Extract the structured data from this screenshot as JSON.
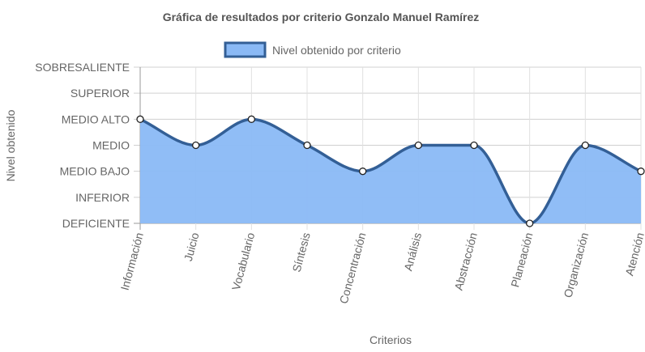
{
  "chart_data": {
    "type": "area",
    "title": "Gráfica de resultados por criterio Gonzalo Manuel Ramírez",
    "xlabel": "Criterios",
    "ylabel": "Nivel obtenido",
    "legend_position": "top",
    "categories": [
      "Información",
      "Juicio",
      "Vocabulario",
      "Síntesis",
      "Concentración",
      "Análisis",
      "Abstracción",
      "Planeación",
      "Organización",
      "Atención"
    ],
    "y_levels": [
      "DEFICIENTE",
      "INFERIOR",
      "MEDIO BAJO",
      "MEDIO",
      "MEDIO ALTO",
      "SUPERIOR",
      "SOBRESALIENTE"
    ],
    "ylim": [
      0,
      6
    ],
    "grid": true,
    "series": [
      {
        "name": "Nivel obtenido por criterio",
        "values": [
          4,
          3,
          4,
          3,
          2,
          3,
          3,
          0,
          3,
          2
        ],
        "fill_color": "#8ab9f5",
        "line_color": "#335f96"
      }
    ]
  }
}
